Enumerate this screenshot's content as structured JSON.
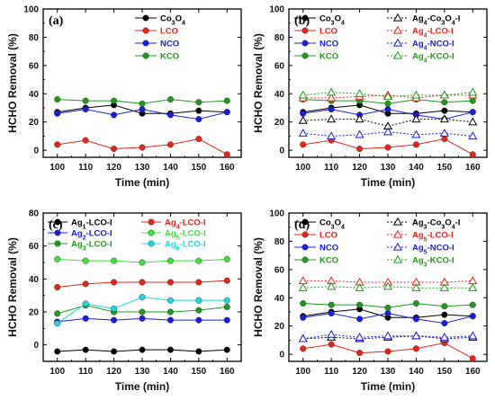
{
  "chart_data": [
    {
      "type": "line",
      "panel_label": "(a)",
      "xlabel": "Time (min)",
      "ylabel": "HCHO Removal (%)",
      "x": [
        100,
        110,
        120,
        130,
        140,
        150,
        160
      ],
      "xlim": [
        95,
        165
      ],
      "ylim": [
        -5,
        100
      ],
      "yticks": [
        0,
        20,
        40,
        60,
        80,
        100
      ],
      "legend_position": "top-right",
      "series": [
        {
          "name": "Co",
          "sub": "3",
          "suf": "O",
          "sub2": "4",
          "color": "#000000",
          "marker": "circle",
          "dashed": false,
          "values": [
            27,
            30,
            32,
            26,
            26,
            28,
            27
          ]
        },
        {
          "name": "LCO",
          "color": "#e8231b",
          "marker": "circle",
          "dashed": false,
          "values": [
            4,
            7,
            1,
            2,
            4,
            8,
            -3
          ]
        },
        {
          "name": "NCO",
          "color": "#1c1ce0",
          "marker": "circle",
          "dashed": false,
          "values": [
            26,
            29,
            25,
            29,
            25,
            22,
            27
          ]
        },
        {
          "name": "KCO",
          "color": "#1f9a1f",
          "marker": "circle",
          "dashed": false,
          "values": [
            36,
            35,
            35,
            33,
            36,
            34,
            35
          ]
        }
      ]
    },
    {
      "type": "line",
      "panel_label": "(b)",
      "xlabel": "Time (min)",
      "ylabel": "HCHO Removal (%)",
      "x": [
        100,
        110,
        120,
        130,
        140,
        150,
        160
      ],
      "xlim": [
        95,
        165
      ],
      "ylim": [
        -5,
        100
      ],
      "yticks": [
        0,
        20,
        40,
        60,
        80,
        100
      ],
      "legend_position": "top",
      "series": [
        {
          "name": "Co",
          "sub": "3",
          "suf": "O",
          "sub2": "4",
          "color": "#000000",
          "marker": "circle",
          "dashed": false,
          "values": [
            27,
            30,
            32,
            26,
            26,
            28,
            27
          ]
        },
        {
          "name": "LCO",
          "color": "#e8231b",
          "marker": "circle",
          "dashed": false,
          "values": [
            4,
            7,
            1,
            2,
            4,
            8,
            -3
          ]
        },
        {
          "name": "NCO",
          "color": "#1c1ce0",
          "marker": "circle",
          "dashed": false,
          "values": [
            26,
            29,
            25,
            29,
            25,
            22,
            27
          ]
        },
        {
          "name": "KCO",
          "color": "#1f9a1f",
          "marker": "circle",
          "dashed": false,
          "values": [
            36,
            35,
            35,
            33,
            36,
            34,
            35
          ]
        },
        {
          "name": "Ag",
          "sub": "4",
          "suf": "-Co",
          "sub2": "3",
          "suf2": "O",
          "sub3": "4",
          "suf3": "-I",
          "color": "#000000",
          "marker": "triangle",
          "dashed": true,
          "values": [
            21,
            22,
            22,
            17,
            22,
            22,
            20
          ]
        },
        {
          "name": "Ag",
          "sub": "4",
          "suf": "-LCO-I",
          "color": "#e8231b",
          "marker": "triangle",
          "dashed": true,
          "values": [
            37,
            37,
            38,
            39,
            37,
            39,
            39
          ]
        },
        {
          "name": "Ag",
          "sub": "4",
          "suf": "-NCO-I",
          "color": "#1c1ce0",
          "marker": "triangle",
          "dashed": true,
          "values": [
            12,
            10,
            11,
            13,
            11,
            12,
            10
          ]
        },
        {
          "name": "Ag",
          "sub": "4",
          "suf": "-KCO-I",
          "color": "#1f9a1f",
          "marker": "triangle",
          "dashed": true,
          "values": [
            39,
            41,
            40,
            38,
            39,
            39,
            41
          ]
        }
      ]
    },
    {
      "type": "line",
      "panel_label": "(c)",
      "xlabel": "Time (min)",
      "ylabel": "HCHO Removal (%)",
      "x": [
        100,
        110,
        120,
        130,
        140,
        150,
        160
      ],
      "xlim": [
        95,
        165
      ],
      "ylim": [
        -10,
        80
      ],
      "yticks": [
        0,
        20,
        40,
        60,
        80
      ],
      "legend_position": "top",
      "series": [
        {
          "name": "Ag",
          "sub": "1",
          "suf": "-LCO-I",
          "color": "#000000",
          "marker": "circle",
          "dashed": false,
          "values": [
            -4,
            -3,
            -4,
            -3,
            -3,
            -4,
            -3
          ]
        },
        {
          "name": "Ag",
          "sub": "2",
          "suf": "-LCO-I",
          "color": "#1c1ce0",
          "marker": "circle",
          "dashed": false,
          "values": [
            14,
            16,
            15,
            16,
            15,
            15,
            15
          ]
        },
        {
          "name": "Ag",
          "sub": "3",
          "suf": "-LCO-I",
          "color": "#1f9a1f",
          "marker": "circle",
          "dashed": false,
          "values": [
            19,
            24,
            20,
            20,
            20,
            21,
            23
          ]
        },
        {
          "name": "Ag",
          "sub": "4",
          "suf": "-LCO-I",
          "color": "#e8231b",
          "marker": "circle",
          "dashed": false,
          "values": [
            35,
            37,
            38,
            38,
            38,
            38,
            39
          ]
        },
        {
          "name": "Ag",
          "sub": "5",
          "suf": "-LCO-I",
          "color": "#3fe03f",
          "marker": "circle",
          "dashed": false,
          "values": [
            52,
            51,
            51,
            50,
            51,
            51,
            52
          ]
        },
        {
          "name": "Ag",
          "sub": "6",
          "suf": "-LCO-I",
          "color": "#1fd8e0",
          "marker": "circle",
          "dashed": false,
          "values": [
            13,
            25,
            22,
            29,
            27,
            27,
            27
          ]
        }
      ]
    },
    {
      "type": "line",
      "panel_label": "(d)",
      "xlabel": "Time (min)",
      "ylabel": "HCHO Removal (%)",
      "x": [
        100,
        110,
        120,
        130,
        140,
        150,
        160
      ],
      "xlim": [
        95,
        165
      ],
      "ylim": [
        -5,
        100
      ],
      "yticks": [
        0,
        20,
        40,
        60,
        80,
        100
      ],
      "legend_position": "top",
      "series": [
        {
          "name": "Co",
          "sub": "3",
          "suf": "O",
          "sub2": "4",
          "color": "#000000",
          "marker": "circle",
          "dashed": false,
          "values": [
            27,
            30,
            32,
            26,
            26,
            28,
            27
          ]
        },
        {
          "name": "LCO",
          "color": "#e8231b",
          "marker": "circle",
          "dashed": false,
          "values": [
            4,
            7,
            1,
            2,
            4,
            8,
            -3
          ]
        },
        {
          "name": "NCO",
          "color": "#1c1ce0",
          "marker": "circle",
          "dashed": false,
          "values": [
            26,
            29,
            25,
            29,
            25,
            22,
            27
          ]
        },
        {
          "name": "KCO",
          "color": "#1f9a1f",
          "marker": "circle",
          "dashed": false,
          "values": [
            36,
            35,
            35,
            33,
            36,
            34,
            35
          ]
        },
        {
          "name": "Ag",
          "sub": "3",
          "suf": "-Co",
          "sub2": "3",
          "suf2": "O",
          "sub3": "4",
          "suf3": "-I",
          "color": "#000000",
          "marker": "triangle",
          "dashed": true,
          "values": [
            11,
            12,
            11,
            12,
            13,
            11,
            12
          ]
        },
        {
          "name": "Ag",
          "sub": "5",
          "suf": "-LCO-I",
          "color": "#e8231b",
          "marker": "triangle",
          "dashed": true,
          "values": [
            52,
            52,
            51,
            51,
            51,
            51,
            52
          ]
        },
        {
          "name": "Ag",
          "sub": "5",
          "suf": "-NCO-I",
          "color": "#1c1ce0",
          "marker": "triangle",
          "dashed": true,
          "values": [
            11,
            14,
            12,
            13,
            13,
            12,
            13
          ]
        },
        {
          "name": "Ag",
          "sub": "3",
          "suf": "-KCO-I",
          "color": "#1f9a1f",
          "marker": "triangle",
          "dashed": true,
          "values": [
            47,
            48,
            47,
            48,
            47,
            47,
            47
          ]
        }
      ]
    }
  ]
}
